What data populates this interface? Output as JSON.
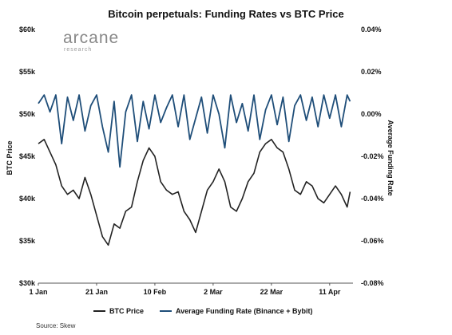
{
  "chart_data": {
    "type": "line",
    "title": "Bitcoin perpetuals: Funding Rates vs BTC Price",
    "ylabel_left": "BTC Price",
    "ylabel_right": "Average Funding Rate",
    "y_left_ticks": [
      "$30k",
      "$35k",
      "$40k",
      "$45k",
      "$50k",
      "$55k",
      "$60k"
    ],
    "y_left_range": [
      30000,
      60000
    ],
    "y_right_ticks": [
      "-0.08%",
      "-0.06%",
      "-0.04%",
      "-0.02%",
      "0.00%",
      "0.02%",
      "0.04%"
    ],
    "y_right_range": [
      -0.08,
      0.04
    ],
    "x_ticks": [
      "1 Jan",
      "21 Jan",
      "10 Feb",
      "2 Mar",
      "22 Mar",
      "11 Apr"
    ],
    "x_range_days": [
      0,
      108
    ],
    "legend_position": "bottom",
    "grid": false,
    "series": [
      {
        "name": "BTC Price",
        "axis": "left",
        "color": "#222222",
        "x": [
          0,
          2,
          4,
          6,
          8,
          10,
          12,
          14,
          16,
          18,
          20,
          22,
          24,
          26,
          28,
          30,
          32,
          34,
          36,
          38,
          40,
          42,
          44,
          46,
          48,
          50,
          52,
          54,
          56,
          58,
          60,
          62,
          64,
          66,
          68,
          70,
          72,
          74,
          76,
          78,
          80,
          82,
          84,
          86,
          88,
          90,
          92,
          94,
          96,
          98,
          100,
          102,
          104,
          106,
          107
        ],
        "values": [
          46500,
          47000,
          45500,
          44000,
          41500,
          40500,
          41000,
          40000,
          42500,
          40500,
          38000,
          35500,
          34500,
          37000,
          36500,
          38500,
          39000,
          42000,
          44500,
          46000,
          45000,
          42000,
          41000,
          40500,
          40800,
          38500,
          37500,
          36000,
          38500,
          41000,
          42000,
          43500,
          42000,
          39000,
          38500,
          40000,
          42000,
          43000,
          45500,
          46500,
          47000,
          46000,
          45500,
          43500,
          41000,
          40500,
          42000,
          41500,
          40000,
          39500,
          40500,
          41500,
          40500,
          39000,
          40800
        ]
      },
      {
        "name": "Average Funding Rate (Binance + Bybit)",
        "axis": "right",
        "color": "#1f4e79",
        "x": [
          0,
          2,
          4,
          6,
          8,
          10,
          12,
          14,
          16,
          18,
          20,
          22,
          24,
          26,
          28,
          30,
          32,
          34,
          36,
          38,
          40,
          42,
          44,
          46,
          48,
          50,
          52,
          54,
          56,
          58,
          60,
          62,
          64,
          66,
          68,
          70,
          72,
          74,
          76,
          78,
          80,
          82,
          84,
          86,
          88,
          90,
          92,
          94,
          96,
          98,
          100,
          102,
          104,
          106,
          107
        ],
        "values": [
          0.005,
          0.009,
          0.001,
          0.009,
          -0.014,
          0.008,
          -0.003,
          0.009,
          -0.008,
          0.004,
          0.009,
          -0.006,
          -0.018,
          0.006,
          -0.025,
          0.001,
          0.009,
          -0.013,
          0.006,
          -0.007,
          0.009,
          -0.004,
          0.003,
          0.009,
          -0.006,
          0.009,
          -0.012,
          -0.002,
          0.008,
          -0.009,
          0.009,
          0.0,
          -0.016,
          0.009,
          -0.004,
          0.005,
          -0.008,
          0.009,
          -0.012,
          0.002,
          0.009,
          -0.005,
          0.008,
          -0.013,
          0.004,
          0.009,
          -0.003,
          0.008,
          -0.006,
          0.009,
          -0.002,
          0.009,
          -0.006,
          0.009,
          0.006
        ]
      }
    ]
  },
  "logo": {
    "main": "arcane",
    "sub": "research"
  },
  "source": "Source: Skew"
}
